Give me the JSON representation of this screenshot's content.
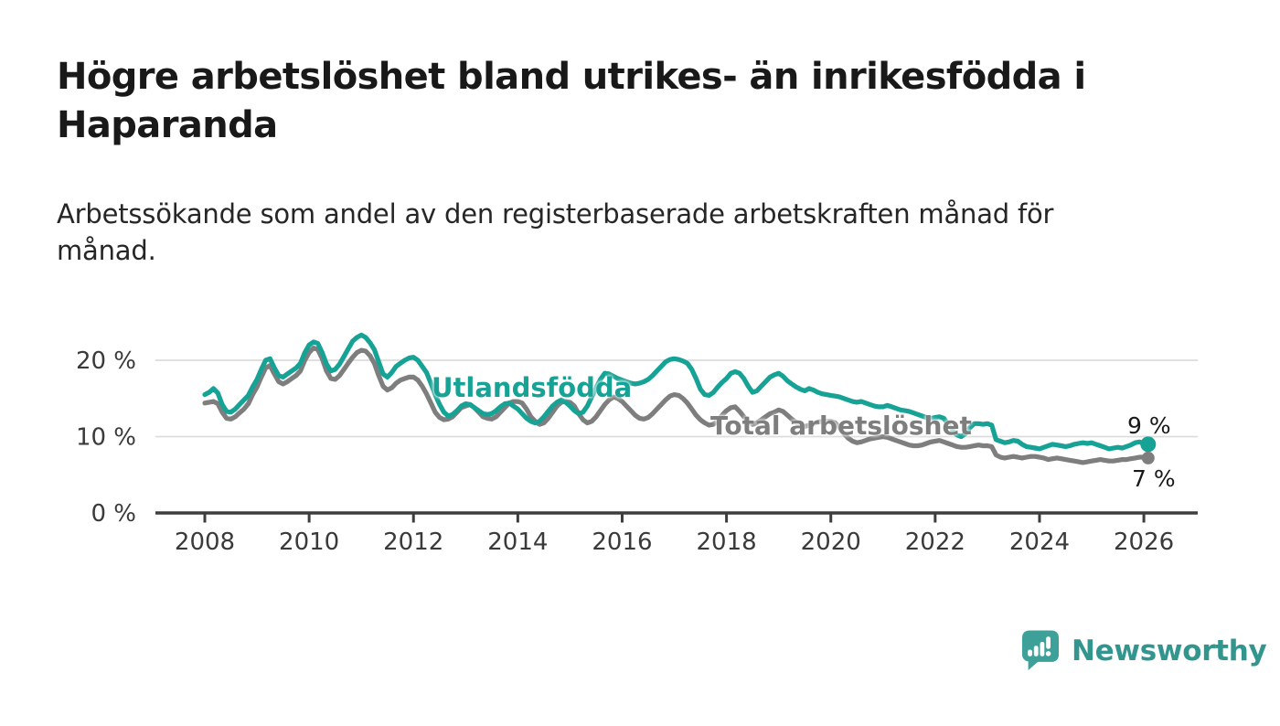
{
  "page": {
    "title_lines": [
      "Högre arbetslöshet bland utrikes- än inrikesfödda i",
      "Haparanda"
    ],
    "subtitle_lines": [
      "Arbetssökande som andel av den registerbaserade arbetskraften månad för",
      "månad."
    ]
  },
  "branding": {
    "name": "Newsworthy",
    "icon": "newsworthy-speech-bubble-bar-chart",
    "wordmark_color": "#33968e",
    "bubble_color": "#3da199"
  },
  "chart_data": {
    "type": "line",
    "unit": "%",
    "grid": "horizontal",
    "x_axis": {
      "start": "2008-01",
      "end": "2026-02",
      "frequency": "monthly",
      "ticks": [
        2008,
        2010,
        2012,
        2014,
        2016,
        2018,
        2020,
        2022,
        2024,
        2026
      ]
    },
    "y_axis": {
      "ticks": [
        {
          "label": "20 %",
          "value": 20
        },
        {
          "label": "10 %",
          "value": 10
        },
        {
          "label": "0 %",
          "value": 0
        }
      ],
      "min": 0,
      "max": 24
    },
    "series": [
      {
        "name": "Utlandsfödda",
        "color": "#17a296",
        "end_label": "9 %",
        "end_value": 9,
        "values": [
          15.5,
          15.8,
          16.3,
          15.7,
          14.2,
          13.3,
          13.2,
          13.6,
          14.2,
          14.8,
          15.4,
          16.5,
          17.5,
          18.8,
          20,
          20.2,
          19,
          18,
          17.8,
          18.2,
          18.6,
          19,
          19.6,
          21,
          22,
          22.4,
          22.2,
          21,
          19.5,
          18.6,
          18.8,
          19.5,
          20.5,
          21.5,
          22.5,
          23,
          23.3,
          23,
          22.3,
          21.4,
          19.8,
          18.2,
          17.8,
          18.4,
          19.2,
          19.6,
          20,
          20.3,
          20.4,
          20,
          19.2,
          18.4,
          17,
          15.5,
          14.2,
          13.2,
          12.7,
          12.9,
          13.4,
          14,
          14.3,
          14.2,
          13.8,
          13.4,
          13,
          12.9,
          13,
          13.4,
          13.9,
          14.3,
          14.4,
          14,
          13.6,
          13,
          12.4,
          12,
          11.8,
          12,
          12.6,
          13.3,
          14,
          14.5,
          14.8,
          14.5,
          14,
          13.4,
          13,
          13.2,
          14,
          15.2,
          16.4,
          17.5,
          18.3,
          18.2,
          17.9,
          17.6,
          17.4,
          17.2,
          17,
          16.9,
          17,
          17.2,
          17.5,
          18,
          18.6,
          19.2,
          19.8,
          20.1,
          20.2,
          20.1,
          19.9,
          19.6,
          18.8,
          17.6,
          16.2,
          15.5,
          15.4,
          15.8,
          16.5,
          17.1,
          17.6,
          18.3,
          18.5,
          18.3,
          17.6,
          16.6,
          15.8,
          16,
          16.6,
          17.2,
          17.8,
          18.1,
          18.3,
          17.9,
          17.3,
          16.9,
          16.5,
          16.2,
          16,
          16.3,
          16.1,
          15.8,
          15.6,
          15.5,
          15.4,
          15.3,
          15.2,
          15,
          14.8,
          14.6,
          14.5,
          14.6,
          14.4,
          14.2,
          14,
          13.9,
          13.9,
          14.1,
          13.9,
          13.7,
          13.5,
          13.4,
          13.3,
          13.1,
          12.9,
          12.7,
          12.5,
          12.4,
          12.5,
          12.6,
          12.4,
          11.6,
          10.8,
          10.2,
          10,
          10.4,
          11.2,
          11.7,
          11.7,
          11.6,
          11.7,
          11.5,
          9.6,
          9.4,
          9.2,
          9.3,
          9.5,
          9.4,
          9,
          8.7,
          8.6,
          8.5,
          8.4,
          8.6,
          8.8,
          9,
          8.9,
          8.8,
          8.7,
          8.8,
          9,
          9.1,
          9.2,
          9.1,
          9.2,
          9,
          8.8,
          8.6,
          8.4,
          8.5,
          8.6,
          8.5,
          8.7,
          8.9,
          9.2,
          9.3,
          9.1,
          9
        ]
      },
      {
        "name": "Total arbetslöshet",
        "color": "#7e7e7e",
        "end_label": "7 %",
        "end_value": 7,
        "values": [
          14.4,
          14.5,
          14.6,
          14.3,
          13.2,
          12.4,
          12.3,
          12.6,
          13.1,
          13.6,
          14.3,
          15.5,
          16.5,
          17.8,
          19,
          19.3,
          18.2,
          17.2,
          16.9,
          17.2,
          17.6,
          18,
          18.6,
          20,
          21,
          21.6,
          21.4,
          20.2,
          18.6,
          17.6,
          17.5,
          18,
          18.8,
          19.6,
          20.4,
          21,
          21.3,
          21.2,
          20.6,
          19.6,
          18,
          16.6,
          16.1,
          16.4,
          17,
          17.4,
          17.6,
          17.8,
          17.8,
          17.4,
          16.6,
          15.6,
          14.4,
          13.2,
          12.5,
          12.2,
          12.3,
          12.6,
          13.2,
          13.8,
          14,
          14.2,
          13.8,
          13.2,
          12.6,
          12.4,
          12.3,
          12.6,
          13.2,
          13.8,
          14.4,
          14.6,
          14.6,
          14.4,
          13.6,
          12.6,
          12,
          11.6,
          11.8,
          12.4,
          13.2,
          14,
          14.5,
          14.6,
          14.5,
          14,
          13,
          12.2,
          11.8,
          12,
          12.6,
          13.4,
          14.2,
          14.8,
          15.2,
          15,
          14.6,
          14,
          13.4,
          12.8,
          12.4,
          12.3,
          12.5,
          13,
          13.6,
          14.2,
          14.8,
          15.3,
          15.5,
          15.4,
          15,
          14.4,
          13.6,
          12.8,
          12.2,
          11.8,
          11.5,
          11.6,
          12.1,
          12.8,
          13.4,
          13.8,
          13.9,
          13.3,
          12.6,
          12,
          11.6,
          11.8,
          12.2,
          12.6,
          13,
          13.2,
          13.5,
          13.3,
          12.8,
          12.3,
          11.9,
          11.5,
          11.3,
          11.5,
          11.7,
          11.9,
          12,
          12,
          12,
          11.8,
          11.2,
          10.4,
          9.8,
          9.4,
          9.2,
          9.3,
          9.5,
          9.7,
          9.8,
          9.9,
          10,
          9.9,
          9.7,
          9.5,
          9.3,
          9.1,
          8.9,
          8.8,
          8.8,
          8.9,
          9.1,
          9.3,
          9.4,
          9.5,
          9.3,
          9.1,
          8.9,
          8.7,
          8.6,
          8.6,
          8.7,
          8.8,
          8.9,
          8.8,
          8.8,
          8.7,
          7.6,
          7.3,
          7.2,
          7.3,
          7.4,
          7.3,
          7.2,
          7.3,
          7.4,
          7.4,
          7.3,
          7.2,
          7,
          7.1,
          7.2,
          7.1,
          7,
          6.9,
          6.8,
          6.7,
          6.6,
          6.7,
          6.8,
          6.9,
          7,
          6.9,
          6.8,
          6.8,
          6.9,
          7,
          7,
          7.1,
          7.2,
          7.3,
          7.3,
          7.2
        ]
      }
    ]
  }
}
